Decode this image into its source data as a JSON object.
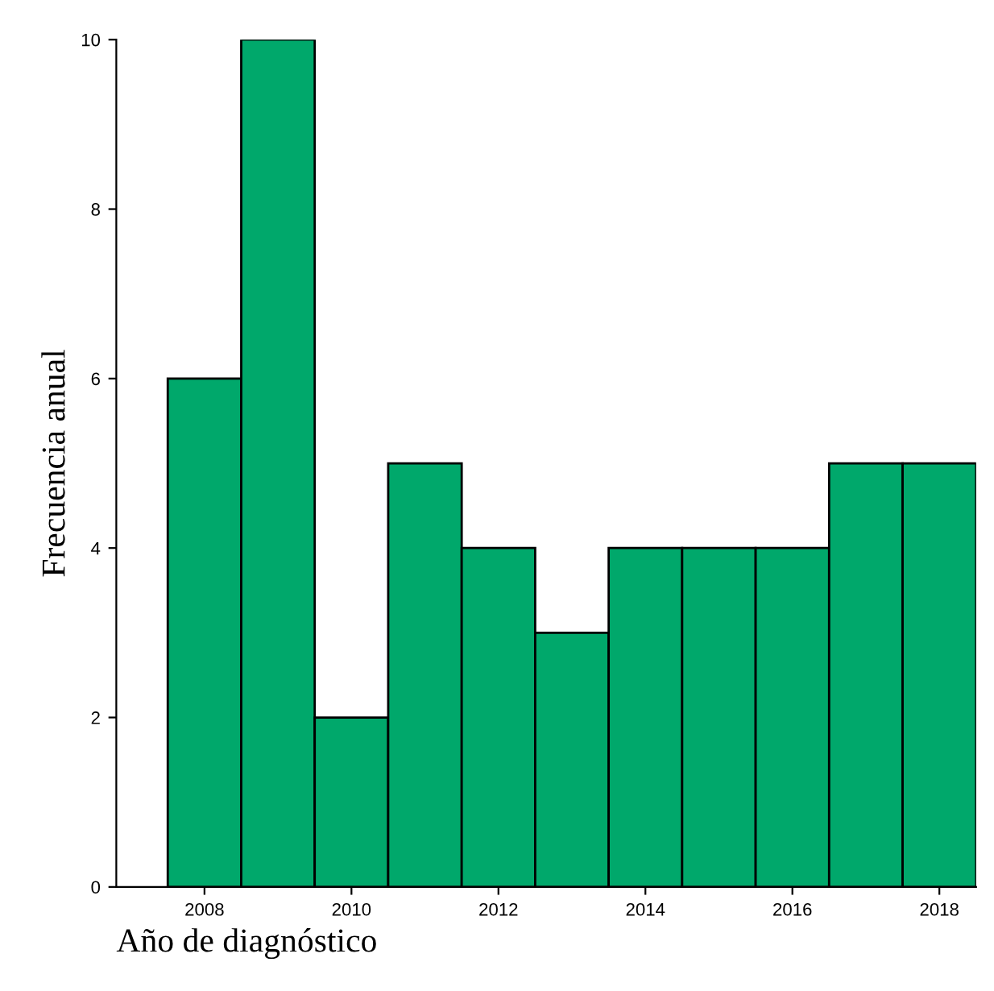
{
  "chart_data": {
    "type": "histogram",
    "xlabel": "Año de diagnóstico",
    "ylabel": "Frecuencia anual",
    "bins": [
      2007.5,
      2008.5,
      2009.5,
      2010.5,
      2011.5,
      2012.5,
      2013.5,
      2014.5,
      2015.5,
      2016.5,
      2017.5,
      2018.5
    ],
    "values": [
      6,
      10,
      2,
      5,
      4,
      3,
      4,
      4,
      4,
      5,
      5
    ],
    "color": "#00a86b",
    "xlim": [
      2006.8,
      2018.5
    ],
    "xticks": [
      2008,
      2010,
      2012,
      2014,
      2016,
      2018
    ],
    "ylim": [
      0,
      10
    ],
    "yticks": [
      0,
      2,
      4,
      6,
      8,
      10
    ],
    "grid": false
  }
}
